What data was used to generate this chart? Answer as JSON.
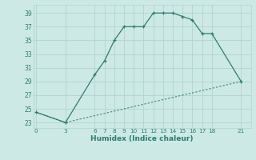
{
  "line1_x": [
    0,
    3,
    6,
    7,
    8,
    9,
    10,
    11,
    12,
    13,
    14,
    15,
    16,
    17,
    18,
    21
  ],
  "line1_y": [
    24.5,
    23,
    30,
    32,
    35,
    37,
    37,
    37,
    39,
    39,
    39,
    38.5,
    38,
    36,
    36,
    29
  ],
  "line2_x": [
    0,
    3,
    21
  ],
  "line2_y": [
    24.5,
    23,
    29
  ],
  "color": "#2e7d6e",
  "bg_color": "#cce9e6",
  "grid_color": "#b0d4d0",
  "xlabel": "Humidex (Indice chaleur)",
  "xticks": [
    0,
    3,
    6,
    7,
    8,
    9,
    10,
    11,
    12,
    13,
    14,
    15,
    16,
    17,
    18,
    21
  ],
  "yticks": [
    23,
    25,
    27,
    29,
    31,
    33,
    35,
    37,
    39
  ],
  "xlim": [
    -0.3,
    22
  ],
  "ylim": [
    22.2,
    40.2
  ]
}
